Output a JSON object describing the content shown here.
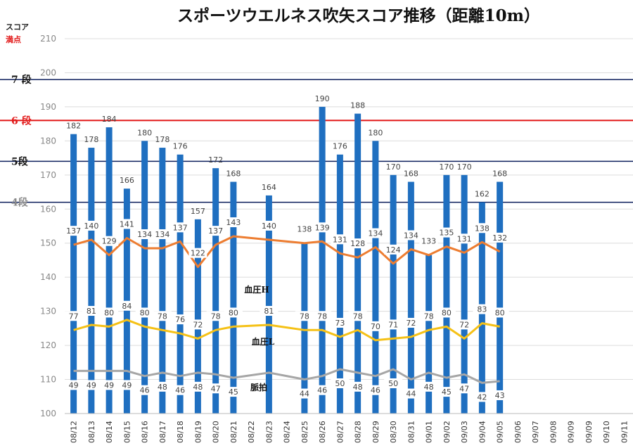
{
  "chart_data": {
    "type": "bar",
    "title": "スポーツウエルネス吹矢スコア推移（距離10m）",
    "ylabel": "スコア",
    "max_label": "満点",
    "ylim": [
      100,
      210
    ],
    "yticks": [
      100,
      110,
      120,
      130,
      140,
      150,
      160,
      170,
      180,
      190,
      200,
      210
    ],
    "categories": [
      "08/12",
      "08/13",
      "08/14",
      "08/15",
      "08/16",
      "08/17",
      "08/18",
      "08/19",
      "08/20",
      "08/21",
      "08/22",
      "08/23",
      "08/24",
      "08/25",
      "08/26",
      "08/27",
      "08/28",
      "08/29",
      "08/30",
      "08/31",
      "09/01",
      "09/02",
      "09/03",
      "09/04",
      "09/05",
      "09/06",
      "09/07",
      "09/08",
      "09/09",
      "09/09",
      "09/10",
      "09/11"
    ],
    "score": [
      182,
      178,
      184,
      166,
      180,
      178,
      176,
      157,
      172,
      168,
      null,
      164,
      null,
      null,
      190,
      176,
      188,
      180,
      170,
      168,
      null,
      170,
      170,
      162,
      168,
      null,
      null,
      null,
      null,
      null,
      null,
      null
    ],
    "bp_high": [
      137,
      140,
      129,
      141,
      134,
      134,
      137,
      122,
      137,
      143,
      null,
      140,
      null,
      138,
      139,
      131,
      128,
      134,
      124,
      134,
      133,
      135,
      131,
      138,
      132,
      null,
      null,
      null,
      null,
      null,
      null,
      null
    ],
    "bp_high_line": [
      149.5,
      151,
      146.5,
      151.5,
      148.5,
      148.5,
      150.5,
      143,
      149.5,
      152,
      null,
      151,
      null,
      150,
      150.5,
      147,
      145.8,
      148.8,
      144,
      148.2,
      146.5,
      149,
      147.2,
      150.3,
      147.5,
      null,
      null,
      null,
      null,
      null,
      null,
      null
    ],
    "bp_low": [
      77,
      81,
      80,
      84,
      80,
      78,
      76,
      72,
      78,
      80,
      null,
      81,
      null,
      78,
      78,
      73,
      78,
      70,
      71,
      72,
      78,
      80,
      72,
      83,
      80,
      null,
      null,
      null,
      null,
      null,
      null,
      null
    ],
    "bp_low_line": [
      124.5,
      126,
      125.5,
      127.5,
      125.5,
      124.5,
      123.5,
      122,
      124.5,
      125.5,
      null,
      126,
      null,
      124.5,
      124.5,
      122.5,
      124.5,
      121.5,
      122,
      122.5,
      124.5,
      125.5,
      122,
      126.5,
      125.5,
      null,
      null,
      null,
      null,
      null,
      null,
      null
    ],
    "pulse": [
      49,
      49,
      49,
      49,
      46,
      48,
      46,
      48,
      47,
      45,
      null,
      null,
      null,
      44,
      46,
      50,
      48,
      46,
      50,
      44,
      48,
      45,
      47,
      42,
      43,
      null,
      null,
      null,
      null,
      null,
      null,
      null
    ],
    "pulse_line": [
      112.5,
      112.5,
      112.5,
      112.5,
      111,
      112,
      111,
      112,
      111.5,
      110.5,
      null,
      112,
      null,
      110,
      111,
      113,
      112,
      111,
      113,
      110,
      112,
      110.5,
      111.5,
      109,
      109.5,
      null,
      null,
      null,
      null,
      null,
      null,
      null
    ],
    "series": [
      {
        "name": "血圧H",
        "color": "#ed7d31"
      },
      {
        "name": "血圧L",
        "color": "#f5c116"
      },
      {
        "name": "脈拍",
        "color": "#a6a6a6"
      }
    ],
    "bar_color": "#1f6fc0",
    "rank_lines": [
      {
        "label": "7 段",
        "value": 198,
        "color": "#0d1f5c",
        "text_color": "#111111"
      },
      {
        "label": "6 段",
        "value": 186,
        "color": "#e21b1b",
        "text_color": "#e21b1b"
      },
      {
        "label": "5段",
        "value": 174,
        "color": "#0d1f5c",
        "text_color": "#111111"
      },
      {
        "label": "4段",
        "value": 162,
        "color": "#0d1f5c",
        "text_color": "#8a8a8a"
      }
    ],
    "grid": true
  }
}
